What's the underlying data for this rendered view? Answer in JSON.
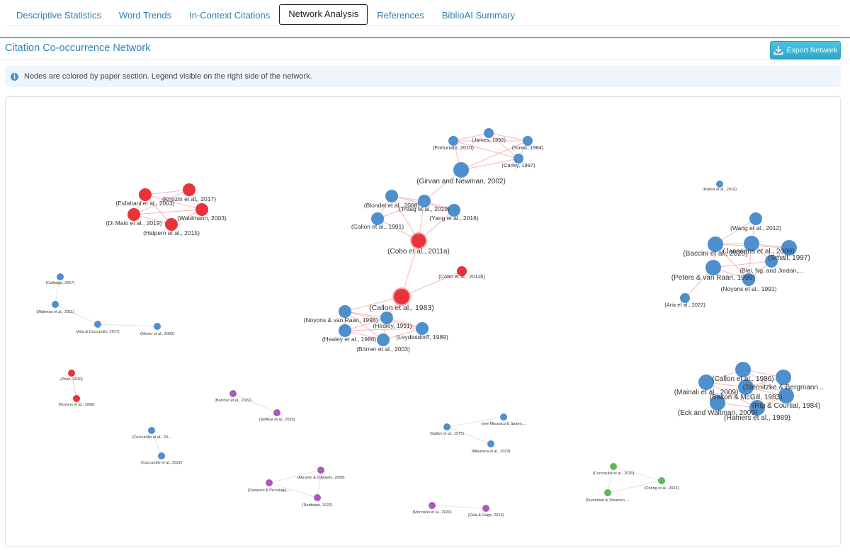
{
  "tabs": [
    {
      "label": "Descriptive Statistics",
      "active": false
    },
    {
      "label": "Word Trends",
      "active": false
    },
    {
      "label": "In-Context Citations",
      "active": false
    },
    {
      "label": "Network Analysis",
      "active": true
    },
    {
      "label": "References",
      "active": false
    },
    {
      "label": "BiblioAI Summary",
      "active": false
    }
  ],
  "page": {
    "title": "Citation Co-occurrence Network",
    "export_label": "Export Network",
    "info_text": "Nodes are colored by paper section. Legend visible on the right side of the network."
  },
  "colors": {
    "red": "#e8333a",
    "blue": "#4e8fcd",
    "purple": "#a95bb8",
    "green": "#5cb85c",
    "edge_red": "#f5a5a8",
    "edge_gray": "#dddddd"
  },
  "network": {
    "nodes": [
      {
        "id": "jam",
        "label": "(James, 1992)",
        "color": "blue",
        "size": "s"
      },
      {
        "id": "for",
        "label": "(Fortunato, 2010)",
        "color": "blue",
        "size": "s"
      },
      {
        "id": "sow",
        "label": "(Sowa, 1984)",
        "color": "blue",
        "size": "s"
      },
      {
        "id": "car",
        "label": "(Carley, 1997)",
        "color": "blue",
        "size": "s"
      },
      {
        "id": "gir",
        "label": "(Girvan and Newman, 2002)",
        "color": "blue",
        "size": "l"
      },
      {
        "id": "blo",
        "label": "(Blondel et al., 2008)",
        "color": "blue",
        "size": "m"
      },
      {
        "id": "tra",
        "label": "(Traag et al., 2019)",
        "color": "blue",
        "size": "m"
      },
      {
        "id": "yan",
        "label": "(Yang et al., 2016)",
        "color": "blue",
        "size": "m"
      },
      {
        "id": "cal91",
        "label": "(Callon et al., 1991)",
        "color": "blue",
        "size": "m"
      },
      {
        "id": "cob11a",
        "label": "(Cobo et al., 2011a)",
        "color": "red",
        "size": "l"
      },
      {
        "id": "cob11b",
        "label": "(Cobo et al., 2011b)",
        "color": "red",
        "size": "s"
      },
      {
        "id": "cal83",
        "label": "(Callon et al., 1983)",
        "color": "red",
        "size": "xl"
      },
      {
        "id": "noy98",
        "label": "(Noyons & van Raan, 1998)",
        "color": "blue",
        "size": "m"
      },
      {
        "id": "hea91",
        "label": "(Healey, 1991)",
        "color": "blue",
        "size": "m"
      },
      {
        "id": "hea86",
        "label": "(Healey et al., 1986)",
        "color": "blue",
        "size": "m"
      },
      {
        "id": "ley",
        "label": "(Leydesdorff, 1989)",
        "color": "blue",
        "size": "m"
      },
      {
        "id": "bor",
        "label": "(Börner et al., 2003)",
        "color": "blue",
        "size": "m"
      },
      {
        "id": "kho",
        "label": "(Khozin et al., 2017)",
        "color": "red",
        "size": "m"
      },
      {
        "id": "esf",
        "label": "(Esfahani et al., 2003)",
        "color": "red",
        "size": "m"
      },
      {
        "id": "wal03",
        "label": "(Waldmann, 2003)",
        "color": "red",
        "size": "m"
      },
      {
        "id": "dim",
        "label": "(Di Maio et al., 2019)",
        "color": "red",
        "size": "m"
      },
      {
        "id": "hal",
        "label": "(Halpern et al., 2015)",
        "color": "red",
        "size": "m"
      },
      {
        "id": "col",
        "label": "(Colledge, 2017)",
        "color": "blue",
        "size": "xs"
      },
      {
        "id": "walt11",
        "label": "(Waltman et al., 2011)",
        "color": "blue",
        "size": "xs"
      },
      {
        "id": "aria17",
        "label": "(Aria & Cuccurullo, 2017)",
        "color": "blue",
        "size": "xs"
      },
      {
        "id": "mor09",
        "label": "(Moner et al., 2009)",
        "color": "blue",
        "size": "xs"
      },
      {
        "id": "zha",
        "label": "(Zhao, 2010)",
        "color": "red",
        "size": "xs"
      },
      {
        "id": "noy99s",
        "label": "(Noyons et al., 1999)",
        "color": "red",
        "size": "xs"
      },
      {
        "id": "bar",
        "label": "(Barroso et al., 2022)",
        "color": "purple",
        "size": "xs"
      },
      {
        "id": "sel",
        "label": "(Selfikar et al., 2020)",
        "color": "purple",
        "size": "xs"
      },
      {
        "id": "cuc20",
        "label": "(Cuccurullo et al., 20...",
        "color": "blue",
        "size": "xs"
      },
      {
        "id": "cuc22",
        "label": "(Cuccurullo et al., 2022)",
        "color": "blue",
        "size": "xs"
      },
      {
        "id": "abr",
        "label": "(Abramo & D'Angelo, 2009)",
        "color": "purple",
        "size": "xs"
      },
      {
        "id": "ces",
        "label": "(Cesaroni & Piccaluga,...",
        "color": "purple",
        "size": "xs"
      },
      {
        "id": "rob",
        "label": "(Robbiano, 2022)",
        "color": "purple",
        "size": "xs"
      },
      {
        "id": "sal75",
        "label": "(Salton et al., 1975)",
        "color": "blue",
        "size": "xs"
      },
      {
        "id": "mis",
        "label": "(see Misuraca & Spano,...",
        "color": "blue",
        "size": "xs"
      },
      {
        "id": "mis23",
        "label": "(Misuraca et al., 2023)",
        "color": "blue",
        "size": "xs"
      },
      {
        "id": "mor20",
        "label": "(Morciano et al., 2020)",
        "color": "purple",
        "size": "xs"
      },
      {
        "id": "cel",
        "label": "(Cela & Gago, 2014)",
        "color": "purple",
        "size": "xs"
      },
      {
        "id": "cuc16",
        "label": "(Cuccurullo et al., 2016)",
        "color": "green",
        "size": "xs"
      },
      {
        "id": "che",
        "label": "(Cheng et al., 2022)",
        "color": "green",
        "size": "xs"
      },
      {
        "id": "suo",
        "label": "(Suominen & Toivanen, ...",
        "color": "green",
        "size": "xs"
      },
      {
        "id": "raf",
        "label": "(Rafols et al., 2010)",
        "color": "blue",
        "size": "xs"
      },
      {
        "id": "wan",
        "label": "(Wang et al., 2012)",
        "color": "blue",
        "size": "m"
      },
      {
        "id": "bac",
        "label": "(Baccini et al., 2020)",
        "color": "blue",
        "size": "l"
      },
      {
        "id": "jan",
        "label": "(Janssens et al., 2009)",
        "color": "blue",
        "size": "l"
      },
      {
        "id": "sma",
        "label": "(Small, 1997)",
        "color": "blue",
        "size": "l"
      },
      {
        "id": "ble",
        "label": "(Blei, Ng, and Jordan,...",
        "color": "blue",
        "size": "m"
      },
      {
        "id": "pet",
        "label": "(Peters & van Raan, 1999)",
        "color": "blue",
        "size": "l"
      },
      {
        "id": "noy91",
        "label": "(Noyons et al., 1991)",
        "color": "blue",
        "size": "m"
      },
      {
        "id": "aria22",
        "label": "(Aria et al., 2022)",
        "color": "blue",
        "size": "s"
      },
      {
        "id": "cal86",
        "label": "(Callon et al., 1986)",
        "color": "blue",
        "size": "l"
      },
      {
        "id": "ste",
        "label": "(Sternitzke & Bergmann...",
        "color": "blue",
        "size": "l"
      },
      {
        "id": "mai",
        "label": "(Mainali et al., 2009)",
        "color": "blue",
        "size": "l"
      },
      {
        "id": "sal83",
        "label": "(Salton & McGill, 1983)",
        "color": "blue",
        "size": "l"
      },
      {
        "id": "rip",
        "label": "(Rip & Courtial, 1984)",
        "color": "blue",
        "size": "l"
      },
      {
        "id": "eck",
        "label": "(Eck and Waltman, 2009)",
        "color": "blue",
        "size": "l"
      },
      {
        "id": "ham",
        "label": "(Hamers et al., 1989)",
        "color": "blue",
        "size": "l"
      }
    ],
    "edges": [
      [
        "jam",
        "for"
      ],
      [
        "jam",
        "sow"
      ],
      [
        "for",
        "sow"
      ],
      [
        "for",
        "car"
      ],
      [
        "sow",
        "car"
      ],
      [
        "jam",
        "car"
      ],
      [
        "car",
        "gir"
      ],
      [
        "for",
        "gir"
      ],
      [
        "sow",
        "gir"
      ],
      [
        "gir",
        "tra"
      ],
      [
        "blo",
        "tra"
      ],
      [
        "blo",
        "yan"
      ],
      [
        "tra",
        "yan"
      ],
      [
        "blo",
        "cal91"
      ],
      [
        "tra",
        "cal91"
      ],
      [
        "blo",
        "cob11a"
      ],
      [
        "tra",
        "cob11a"
      ],
      [
        "yan",
        "cob11a"
      ],
      [
        "cal91",
        "cob11a"
      ],
      [
        "cob11a",
        "cal83"
      ],
      [
        "cal83",
        "cob11b"
      ],
      [
        "cal83",
        "noy98"
      ],
      [
        "cal83",
        "hea91"
      ],
      [
        "noy98",
        "hea91"
      ],
      [
        "noy98",
        "hea86"
      ],
      [
        "noy98",
        "bor"
      ],
      [
        "noy98",
        "ley"
      ],
      [
        "hea91",
        "hea86"
      ],
      [
        "hea91",
        "ley"
      ],
      [
        "hea91",
        "bor"
      ],
      [
        "hea86",
        "bor"
      ],
      [
        "hea86",
        "ley"
      ],
      [
        "bor",
        "ley"
      ],
      [
        "kho",
        "esf"
      ],
      [
        "kho",
        "wal03"
      ],
      [
        "kho",
        "dim"
      ],
      [
        "esf",
        "dim"
      ],
      [
        "esf",
        "wal03"
      ],
      [
        "esf",
        "hal"
      ],
      [
        "dim",
        "hal"
      ],
      [
        "wal03",
        "hal"
      ],
      [
        "dim",
        "wal03"
      ],
      [
        "col",
        "walt11"
      ],
      [
        "walt11",
        "aria17"
      ],
      [
        "aria17",
        "mor09"
      ],
      [
        "zha",
        "noy99s"
      ],
      [
        "bar",
        "sel"
      ],
      [
        "cuc20",
        "cuc22"
      ],
      [
        "abr",
        "ces"
      ],
      [
        "abr",
        "rob"
      ],
      [
        "ces",
        "rob"
      ],
      [
        "sal75",
        "mis"
      ],
      [
        "sal75",
        "mis23"
      ],
      [
        "mor20",
        "cel"
      ],
      [
        "cuc16",
        "che"
      ],
      [
        "cuc16",
        "suo"
      ],
      [
        "che",
        "suo"
      ],
      [
        "wan",
        "jan"
      ],
      [
        "wan",
        "bac"
      ],
      [
        "bac",
        "jan"
      ],
      [
        "bac",
        "sma"
      ],
      [
        "jan",
        "sma"
      ],
      [
        "jan",
        "ble"
      ],
      [
        "sma",
        "ble"
      ],
      [
        "bac",
        "pet"
      ],
      [
        "pet",
        "noy91"
      ],
      [
        "bac",
        "noy91"
      ],
      [
        "jan",
        "noy91"
      ],
      [
        "ble",
        "noy91"
      ],
      [
        "pet",
        "ble"
      ],
      [
        "aria22",
        "pet"
      ],
      [
        "cal86",
        "ste"
      ],
      [
        "cal86",
        "mai"
      ],
      [
        "cal86",
        "sal83"
      ],
      [
        "cal86",
        "rip"
      ],
      [
        "ste",
        "sal83"
      ],
      [
        "ste",
        "rip"
      ],
      [
        "mai",
        "sal83"
      ],
      [
        "mai",
        "eck"
      ],
      [
        "sal83",
        "rip"
      ],
      [
        "sal83",
        "eck"
      ],
      [
        "sal83",
        "ham"
      ],
      [
        "rip",
        "ham"
      ],
      [
        "eck",
        "ham"
      ],
      [
        "mai",
        "ham"
      ]
    ]
  }
}
